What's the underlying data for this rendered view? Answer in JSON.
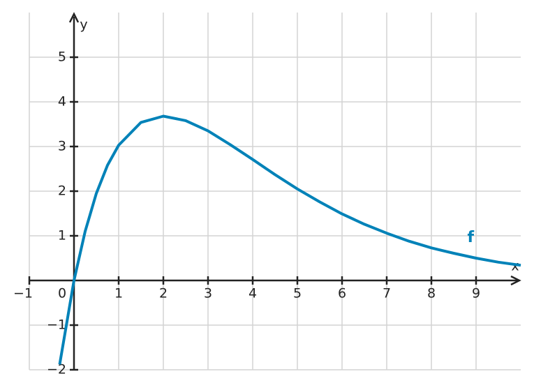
{
  "chart_data": {
    "type": "line",
    "x": [
      -0.32,
      0,
      0.25,
      0.5,
      0.75,
      1,
      1.5,
      2,
      2.5,
      3,
      3.5,
      4,
      4.5,
      5,
      5.5,
      6,
      6.5,
      7,
      7.5,
      8,
      8.5,
      9,
      9.5,
      10
    ],
    "series": [
      {
        "name": "f",
        "color": "#0082b8",
        "values": [
          -1.88,
          0,
          1.1,
          1.95,
          2.58,
          3.03,
          3.54,
          3.68,
          3.58,
          3.35,
          3.04,
          2.71,
          2.37,
          2.05,
          1.76,
          1.49,
          1.26,
          1.06,
          0.88,
          0.73,
          0.61,
          0.5,
          0.41,
          0.34
        ]
      }
    ],
    "xlabel": "x",
    "ylabel": "y",
    "xlim": [
      -1,
      10
    ],
    "ylim": [
      -2,
      6
    ],
    "xticks": [
      {
        "value": -1,
        "label": "−1"
      },
      0,
      1,
      2,
      3,
      4,
      5,
      6,
      7,
      8,
      9
    ],
    "yticks": [
      {
        "value": -2,
        "label": "−2"
      },
      {
        "value": -1,
        "label": "−1"
      },
      1,
      2,
      3,
      4,
      5
    ],
    "grid": true
  }
}
